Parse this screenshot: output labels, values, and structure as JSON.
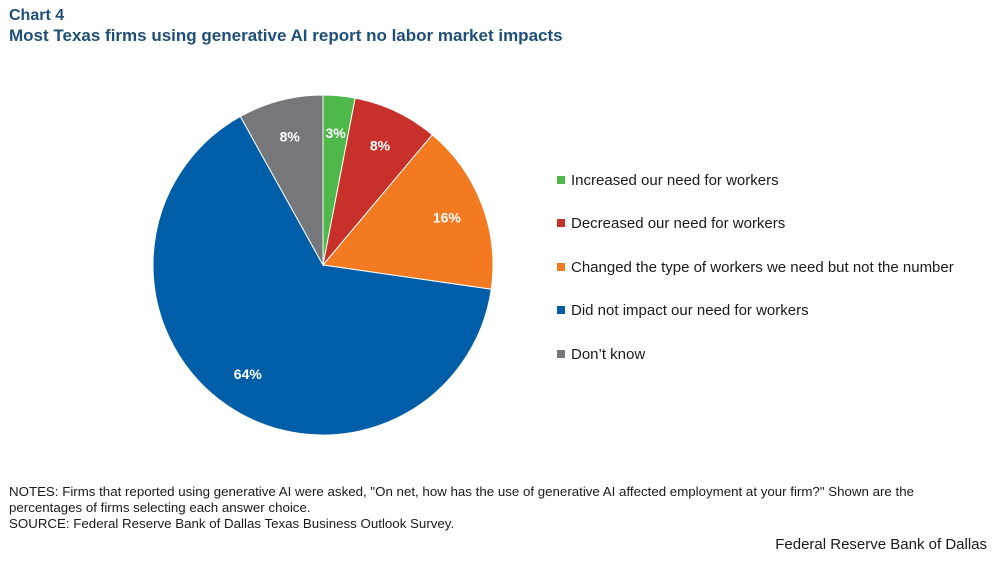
{
  "header": {
    "chart_label": "Chart 4",
    "title": "Most Texas firms using generative AI report no labor market impacts"
  },
  "chart_data": {
    "type": "pie",
    "slices": [
      {
        "label": "Increased our need for workers",
        "value": 3,
        "display": "3%",
        "color": "#4eb94a"
      },
      {
        "label": "Decreased our need for workers",
        "value": 8,
        "display": "8%",
        "color": "#c8312b"
      },
      {
        "label": "Changed the type of workers we need but not the number",
        "value": 16,
        "display": "16%",
        "color": "#f37a20"
      },
      {
        "label": "Did not impact our need for workers",
        "value": 64,
        "display": "64%",
        "color": "#005ea8"
      },
      {
        "label": "Don’t know",
        "value": 8,
        "display": "8%",
        "color": "#76777a"
      }
    ],
    "legend_position": "right"
  },
  "notes": {
    "text": "NOTES: Firms that reported using generative AI were asked, \"On net, how has the use of generative AI affected employment at your firm?\" Shown are the percentages of firms selecting each answer choice.",
    "source": "SOURCE: Federal Reserve Bank of Dallas Texas Business Outlook Survey."
  },
  "footer": {
    "brand": "Federal Reserve Bank of Dallas"
  }
}
